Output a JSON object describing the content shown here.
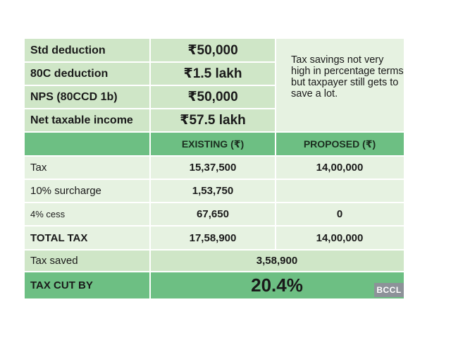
{
  "deductions": [
    {
      "label": "Std deduction",
      "amount": "₹50,000"
    },
    {
      "label": "80C deduction",
      "amount": "₹1.5 lakh"
    },
    {
      "label": "NPS (80CCD 1b)",
      "amount": "₹50,000"
    },
    {
      "label": "Net taxable income",
      "amount": "₹57.5 lakh"
    }
  ],
  "note": "Tax savings not very high in percentage terms but taxpayer still gets to save a lot.",
  "columns": {
    "existing": "EXISTING (₹)",
    "proposed": "PROPOSED (₹)"
  },
  "rows": [
    {
      "label": "Tax",
      "existing": "15,37,500",
      "proposed": "14,00,000"
    },
    {
      "label": "10% surcharge",
      "existing": "1,53,750",
      "proposed": ""
    },
    {
      "label": "4% cess",
      "existing": "67,650",
      "proposed": "0"
    },
    {
      "label": "TOTAL TAX",
      "existing": "17,58,900",
      "proposed": "14,00,000"
    }
  ],
  "tax_saved": {
    "label": "Tax saved",
    "value": "3,58,900"
  },
  "tax_cut": {
    "label": "TAX CUT BY",
    "value": "20.4%"
  },
  "credit": "BCCL"
}
